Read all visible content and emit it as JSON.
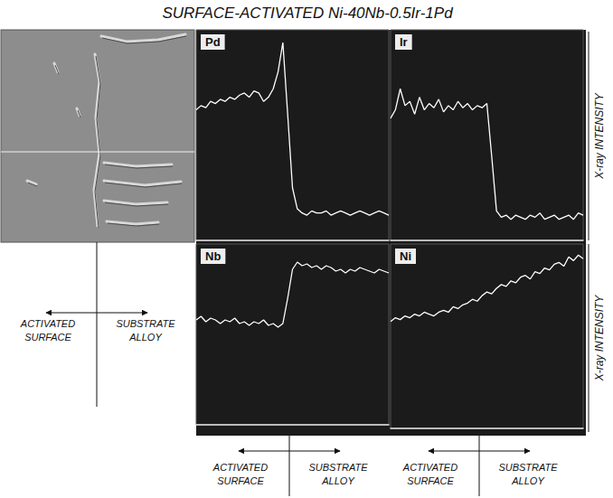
{
  "title": "SURFACE-ACTIVATED Ni-40Nb-0.5Ir-1Pd",
  "axis_title": "X-ray INTENSITY",
  "region_labels": [
    "ACTIVATED SURFACE",
    "SUBSTRATE ALLOY"
  ],
  "chart_data": [
    {
      "type": "line",
      "title": "Pd",
      "color": "#ffffff",
      "grid": false,
      "tick_labels": false,
      "xlim": [
        0,
        100
      ],
      "ylim": [
        0,
        100
      ],
      "x": [
        0,
        2.5,
        5,
        7.5,
        10,
        12.5,
        15,
        17.5,
        20,
        22.5,
        25,
        27.5,
        30,
        32.5,
        35,
        37.5,
        40,
        42.5,
        45,
        47.5,
        50,
        52.5,
        55,
        57.5,
        60,
        62.5,
        65,
        67.5,
        70,
        72.5,
        75,
        77.5,
        80,
        82.5,
        85,
        87.5,
        90,
        92.5,
        95,
        97.5,
        100
      ],
      "values": [
        62,
        64,
        63,
        66,
        65,
        67,
        66,
        68,
        67,
        69,
        70,
        68,
        71,
        70,
        66,
        68,
        72,
        80,
        94,
        60,
        25,
        15,
        13,
        12,
        14,
        13,
        13,
        14,
        12,
        13,
        14,
        13,
        12,
        13,
        14,
        13,
        12,
        13,
        14,
        13,
        12
      ]
    },
    {
      "type": "line",
      "title": "Ir",
      "color": "#ffffff",
      "grid": false,
      "tick_labels": false,
      "xlim": [
        0,
        100
      ],
      "ylim": [
        0,
        100
      ],
      "x": [
        0,
        2.5,
        5,
        7.5,
        10,
        12.5,
        15,
        17.5,
        20,
        22.5,
        25,
        27.5,
        30,
        32.5,
        35,
        37.5,
        40,
        42.5,
        45,
        47.5,
        50,
        52.5,
        55,
        57.5,
        60,
        62.5,
        65,
        67.5,
        70,
        72.5,
        75,
        77.5,
        80,
        82.5,
        85,
        87.5,
        90,
        92.5,
        95,
        97.5,
        100
      ],
      "values": [
        58,
        62,
        72,
        64,
        66,
        60,
        68,
        62,
        65,
        63,
        67,
        61,
        64,
        62,
        66,
        63,
        65,
        62,
        64,
        63,
        65,
        40,
        14,
        11,
        12,
        10,
        12,
        11,
        10,
        12,
        11,
        13,
        10,
        11,
        12,
        10,
        11,
        12,
        10,
        13,
        12
      ]
    },
    {
      "type": "line",
      "title": "Nb",
      "color": "#ffffff",
      "grid": false,
      "tick_labels": false,
      "xlim": [
        0,
        100
      ],
      "ylim": [
        0,
        100
      ],
      "x": [
        0,
        2.5,
        5,
        7.5,
        10,
        12.5,
        15,
        17.5,
        20,
        22.5,
        25,
        27.5,
        30,
        32.5,
        35,
        37.5,
        40,
        42.5,
        45,
        47.5,
        50,
        52.5,
        55,
        57.5,
        60,
        62.5,
        65,
        67.5,
        70,
        72.5,
        75,
        77.5,
        80,
        82.5,
        85,
        87.5,
        90,
        92.5,
        95,
        97.5,
        100
      ],
      "values": [
        58,
        60,
        57,
        59,
        58,
        56,
        58,
        57,
        59,
        56,
        57,
        55,
        57,
        56,
        58,
        55,
        56,
        54,
        56,
        70,
        86,
        90,
        88,
        89,
        87,
        88,
        86,
        88,
        87,
        85,
        86,
        84,
        86,
        85,
        87,
        86,
        85,
        84,
        86,
        85,
        84
      ]
    },
    {
      "type": "line",
      "title": "Ni",
      "color": "#ffffff",
      "grid": false,
      "tick_labels": false,
      "xlim": [
        0,
        100
      ],
      "ylim": [
        0,
        100
      ],
      "x": [
        0,
        2.5,
        5,
        7.5,
        10,
        12.5,
        15,
        17.5,
        20,
        22.5,
        25,
        27.5,
        30,
        32.5,
        35,
        37.5,
        40,
        42.5,
        45,
        47.5,
        50,
        52.5,
        55,
        57.5,
        60,
        62.5,
        65,
        67.5,
        70,
        72.5,
        75,
        77.5,
        80,
        82.5,
        85,
        87.5,
        90,
        92.5,
        95,
        97.5,
        100
      ],
      "values": [
        58,
        60,
        59,
        61,
        60,
        62,
        61,
        63,
        62,
        61,
        63,
        64,
        63,
        66,
        65,
        67,
        68,
        70,
        69,
        72,
        74,
        73,
        76,
        78,
        77,
        80,
        79,
        82,
        83,
        81,
        85,
        84,
        87,
        86,
        89,
        90,
        88,
        93,
        91,
        94,
        92
      ]
    }
  ]
}
